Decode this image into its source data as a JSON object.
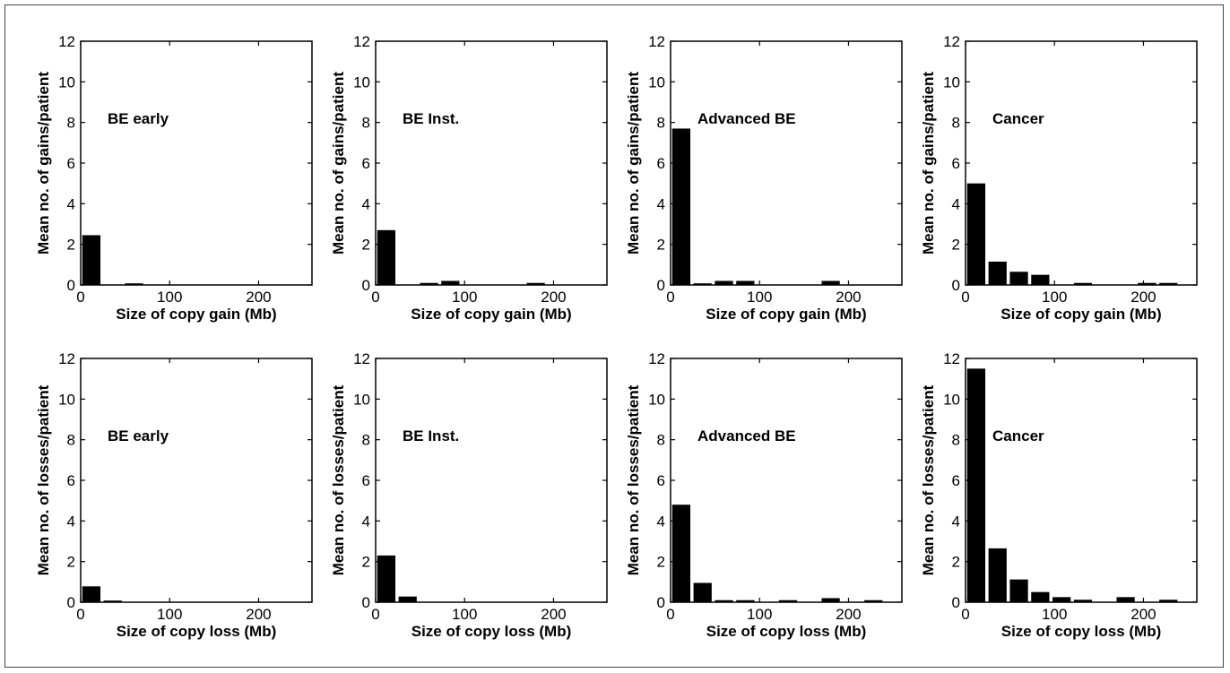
{
  "chart_data": [
    {
      "type": "bar",
      "row": 0,
      "col": 0,
      "label": "BE early",
      "xlabel": "Size of copy gain (Mb)",
      "ylabel": "Mean no. of gains/patient",
      "xlim": [
        0,
        260
      ],
      "ylim": [
        0,
        12
      ],
      "xticks": [
        0,
        100,
        200
      ],
      "yticks": [
        0,
        2,
        4,
        6,
        8,
        10,
        12
      ],
      "bin_width": 24,
      "bar_fraction": 0.85,
      "bars": [
        {
          "x": 12,
          "y": 2.45
        },
        {
          "x": 60,
          "y": 0.08
        }
      ]
    },
    {
      "type": "bar",
      "row": 0,
      "col": 1,
      "label": "BE Inst.",
      "xlabel": "Size of copy gain (Mb)",
      "ylabel": "Mean no. of gains/patient",
      "xlim": [
        0,
        260
      ],
      "ylim": [
        0,
        12
      ],
      "xticks": [
        0,
        100,
        200
      ],
      "yticks": [
        0,
        2,
        4,
        6,
        8,
        10,
        12
      ],
      "bin_width": 24,
      "bar_fraction": 0.85,
      "bars": [
        {
          "x": 12,
          "y": 2.7
        },
        {
          "x": 60,
          "y": 0.1
        },
        {
          "x": 84,
          "y": 0.2
        },
        {
          "x": 180,
          "y": 0.1
        }
      ]
    },
    {
      "type": "bar",
      "row": 0,
      "col": 2,
      "label": "Advanced BE",
      "xlabel": "Size of copy gain (Mb)",
      "ylabel": "Mean no. of gains/patient",
      "xlim": [
        0,
        260
      ],
      "ylim": [
        0,
        12
      ],
      "xticks": [
        0,
        100,
        200
      ],
      "yticks": [
        0,
        2,
        4,
        6,
        8,
        10,
        12
      ],
      "bin_width": 24,
      "bar_fraction": 0.85,
      "bars": [
        {
          "x": 12,
          "y": 7.7
        },
        {
          "x": 36,
          "y": 0.08
        },
        {
          "x": 60,
          "y": 0.2
        },
        {
          "x": 84,
          "y": 0.2
        },
        {
          "x": 180,
          "y": 0.2
        }
      ]
    },
    {
      "type": "bar",
      "row": 0,
      "col": 3,
      "label": "Cancer",
      "xlabel": "Size of copy gain (Mb)",
      "ylabel": "Mean no. of gains/patient",
      "xlim": [
        0,
        260
      ],
      "ylim": [
        0,
        12
      ],
      "xticks": [
        0,
        100,
        200
      ],
      "yticks": [
        0,
        2,
        4,
        6,
        8,
        10,
        12
      ],
      "bin_width": 24,
      "bar_fraction": 0.85,
      "bars": [
        {
          "x": 12,
          "y": 5.0
        },
        {
          "x": 36,
          "y": 1.15
        },
        {
          "x": 60,
          "y": 0.65
        },
        {
          "x": 84,
          "y": 0.5
        },
        {
          "x": 132,
          "y": 0.1
        },
        {
          "x": 204,
          "y": 0.1
        },
        {
          "x": 228,
          "y": 0.1
        }
      ]
    },
    {
      "type": "bar",
      "row": 1,
      "col": 0,
      "label": "BE early",
      "xlabel": "Size of copy loss (Mb)",
      "ylabel": "Mean no. of losses/patient",
      "xlim": [
        0,
        260
      ],
      "ylim": [
        0,
        12
      ],
      "xticks": [
        0,
        100,
        200
      ],
      "yticks": [
        0,
        2,
        4,
        6,
        8,
        10,
        12
      ],
      "bin_width": 24,
      "bar_fraction": 0.85,
      "bars": [
        {
          "x": 12,
          "y": 0.78
        },
        {
          "x": 36,
          "y": 0.08
        }
      ]
    },
    {
      "type": "bar",
      "row": 1,
      "col": 1,
      "label": "BE Inst.",
      "xlabel": "Size of copy loss (Mb)",
      "ylabel": "Mean no. of losses/patient",
      "xlim": [
        0,
        260
      ],
      "ylim": [
        0,
        12
      ],
      "xticks": [
        0,
        100,
        200
      ],
      "yticks": [
        0,
        2,
        4,
        6,
        8,
        10,
        12
      ],
      "bin_width": 24,
      "bar_fraction": 0.85,
      "bars": [
        {
          "x": 12,
          "y": 2.3
        },
        {
          "x": 36,
          "y": 0.28
        }
      ]
    },
    {
      "type": "bar",
      "row": 1,
      "col": 2,
      "label": "Advanced BE",
      "xlabel": "Size of copy loss (Mb)",
      "ylabel": "Mean no. of losses/patient",
      "xlim": [
        0,
        260
      ],
      "ylim": [
        0,
        12
      ],
      "xticks": [
        0,
        100,
        200
      ],
      "yticks": [
        0,
        2,
        4,
        6,
        8,
        10,
        12
      ],
      "bin_width": 24,
      "bar_fraction": 0.85,
      "bars": [
        {
          "x": 12,
          "y": 4.8
        },
        {
          "x": 36,
          "y": 0.95
        },
        {
          "x": 60,
          "y": 0.1
        },
        {
          "x": 84,
          "y": 0.1
        },
        {
          "x": 132,
          "y": 0.1
        },
        {
          "x": 180,
          "y": 0.2
        },
        {
          "x": 228,
          "y": 0.1
        }
      ]
    },
    {
      "type": "bar",
      "row": 1,
      "col": 3,
      "label": "Cancer",
      "xlabel": "Size of copy loss (Mb)",
      "ylabel": "Mean no. of losses/patient",
      "xlim": [
        0,
        260
      ],
      "ylim": [
        0,
        12
      ],
      "xticks": [
        0,
        100,
        200
      ],
      "yticks": [
        0,
        2,
        4,
        6,
        8,
        10,
        12
      ],
      "bin_width": 24,
      "bar_fraction": 0.85,
      "bars": [
        {
          "x": 12,
          "y": 11.5
        },
        {
          "x": 36,
          "y": 2.65
        },
        {
          "x": 60,
          "y": 1.12
        },
        {
          "x": 84,
          "y": 0.5
        },
        {
          "x": 108,
          "y": 0.25
        },
        {
          "x": 132,
          "y": 0.12
        },
        {
          "x": 180,
          "y": 0.25
        },
        {
          "x": 228,
          "y": 0.12
        }
      ]
    }
  ]
}
